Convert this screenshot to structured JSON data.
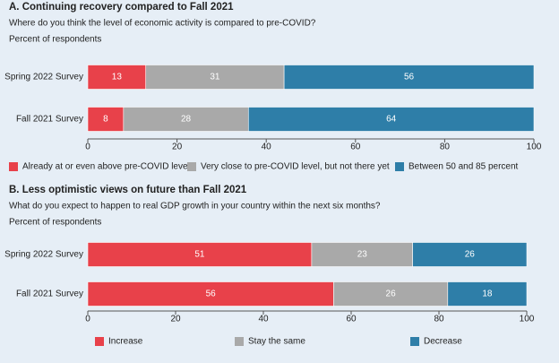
{
  "chart_data": [
    {
      "type": "stacked-barh",
      "title": "A. Continuing recovery compared to Fall 2021",
      "subtitle": "Where do you think the level of economic activity is compared to pre-COVID?",
      "units": "Percent of respondents",
      "categories": [
        "Spring 2022 Survey",
        "Fall 2021 Survey"
      ],
      "series": [
        {
          "name": "Already at or even above pre-COVID level",
          "color": "#e8414a",
          "values": [
            13,
            8
          ]
        },
        {
          "name": "Very close to pre-COVID level, but not there yet",
          "color": "#a9a9a9",
          "values": [
            31,
            28
          ]
        },
        {
          "name": "Between 50 and 85 percent",
          "color": "#2e7ea8",
          "values": [
            56,
            64
          ]
        }
      ],
      "xlim": [
        0,
        100
      ],
      "xticks": [
        0,
        20,
        40,
        60,
        80,
        100
      ],
      "grid": false,
      "legend": "bottom"
    },
    {
      "type": "stacked-barh",
      "title": "B. Less optimistic views on future than Fall 2021",
      "subtitle": "What do you expect to happen to real GDP growth in your country within the next six months?",
      "units": "Percent of respondents",
      "categories": [
        "Spring 2022 Survey",
        "Fall 2021 Survey"
      ],
      "series": [
        {
          "name": "Increase",
          "color": "#e8414a",
          "values": [
            51,
            56
          ]
        },
        {
          "name": "Stay the same",
          "color": "#a9a9a9",
          "values": [
            23,
            26
          ]
        },
        {
          "name": "Decrease",
          "color": "#2e7ea8",
          "values": [
            26,
            18
          ]
        }
      ],
      "xlim": [
        0,
        100
      ],
      "xticks": [
        0,
        20,
        40,
        60,
        80,
        100
      ],
      "grid": false,
      "legend": "bottom"
    }
  ]
}
